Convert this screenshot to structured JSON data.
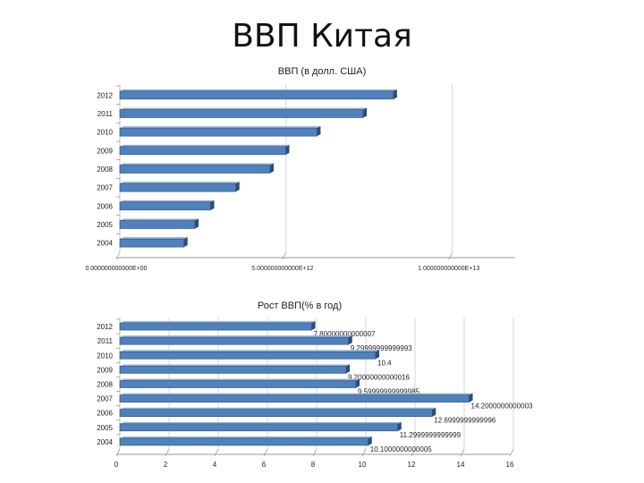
{
  "slide": {
    "title": "ВВП Китая"
  },
  "colors": {
    "bar": "#4F81BD",
    "bar_dark": "#2C4D75",
    "bar_light": "#95B3D7",
    "grid": "#999999",
    "text": "#222222"
  },
  "chart_data": [
    {
      "type": "bar",
      "orientation": "horizontal",
      "title": "ВВП (в долл. США)",
      "categories": [
        "2012",
        "2011",
        "2010",
        "2009",
        "2008",
        "2007",
        "2006",
        "2005",
        "2004"
      ],
      "values": [
        8230000000000.0,
        7320000000000.0,
        5930000000000.0,
        4990000000000.0,
        4520000000000.0,
        3490000000000.0,
        2730000000000.0,
        2260000000000.0,
        1930000000000.0
      ],
      "xlim": [
        0,
        12000000000000.0
      ],
      "ticks": [
        0,
        5000000000000.0,
        10000000000000.0
      ],
      "tick_labels": [
        "0.000000000000E+00",
        "5.000000000000E+12",
        "1.000000000000E+13"
      ],
      "grid": true
    },
    {
      "type": "bar",
      "orientation": "horizontal",
      "title": "Рост ВВП(% в год)",
      "categories": [
        "2012",
        "2011",
        "2010",
        "2009",
        "2008",
        "2007",
        "2006",
        "2005",
        "2004"
      ],
      "values": [
        7.8,
        9.3,
        10.4,
        9.2,
        9.6,
        14.2,
        12.7,
        11.3,
        10.1
      ],
      "data_labels": [
        "7.80000000000007",
        "9.29999999999993",
        "10.4",
        "9.20000000000016",
        "9.59999999999985",
        "14.2000000000003",
        "12.6999999999996",
        "11.2999999999999",
        "10.1000000000005"
      ],
      "xlim": [
        0,
        16
      ],
      "ticks": [
        0,
        2,
        4,
        6,
        8,
        10,
        12,
        14,
        16
      ],
      "tick_labels": [
        "0",
        "2",
        "4",
        "6",
        "8",
        "10",
        "12",
        "14",
        "16"
      ],
      "grid": true
    }
  ]
}
